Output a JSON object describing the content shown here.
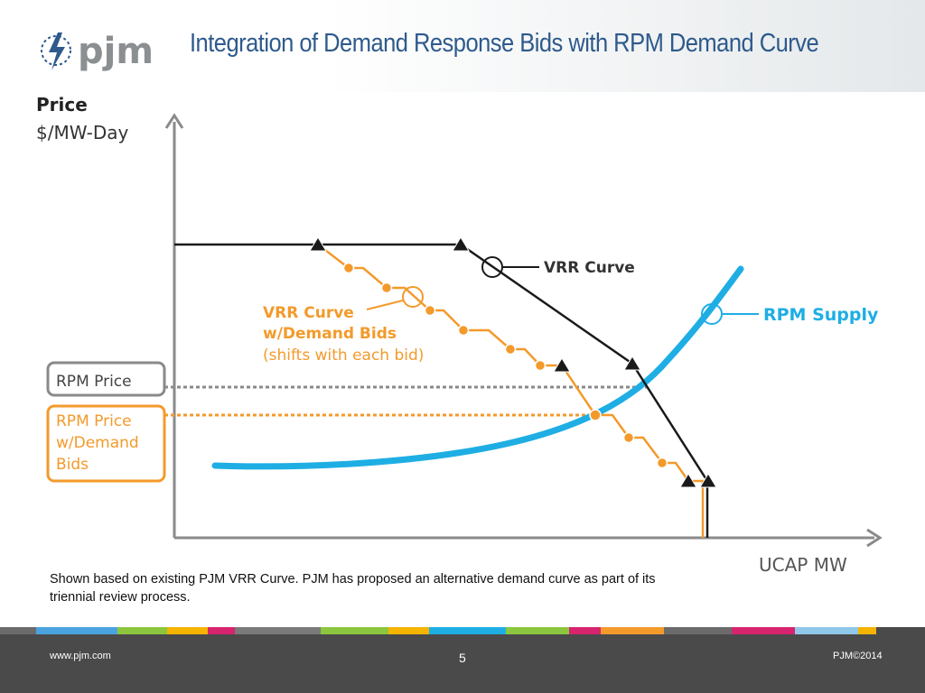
{
  "header": {
    "logo_text": "pjm",
    "title": "Integration of Demand Response Bids with RPM Demand Curve"
  },
  "diagram": {
    "y_axis_label_line1": "Price",
    "y_axis_label_line2": "$/MW-Day",
    "x_axis_label": "UCAP MW",
    "vrr_curve_label": "VRR Curve",
    "rpm_supply_label": "RPM Supply",
    "vrr_demand_label_line1": "VRR Curve",
    "vrr_demand_label_line2": "w/Demand Bids",
    "vrr_demand_label_line3": "(shifts with each bid)",
    "rpm_price_label": "RPM Price",
    "rpm_price_demand_line1": "RPM Price",
    "rpm_price_demand_line2": "w/Demand",
    "rpm_price_demand_line3": "Bids"
  },
  "colors": {
    "title_blue": "#2e5a8c",
    "vrr_black": "#1a1a1a",
    "demand_orange": "#f39a2b",
    "supply_blue": "#1eaee4",
    "axis_gray": "#8a8a8a"
  },
  "footnote": "Shown based on existing PJM VRR Curve.  PJM has proposed an alternative demand curve as part of its triennial review process.",
  "footer": {
    "url": "www.pjm.com",
    "page_number": "5",
    "copyright": "PJM©2014"
  }
}
